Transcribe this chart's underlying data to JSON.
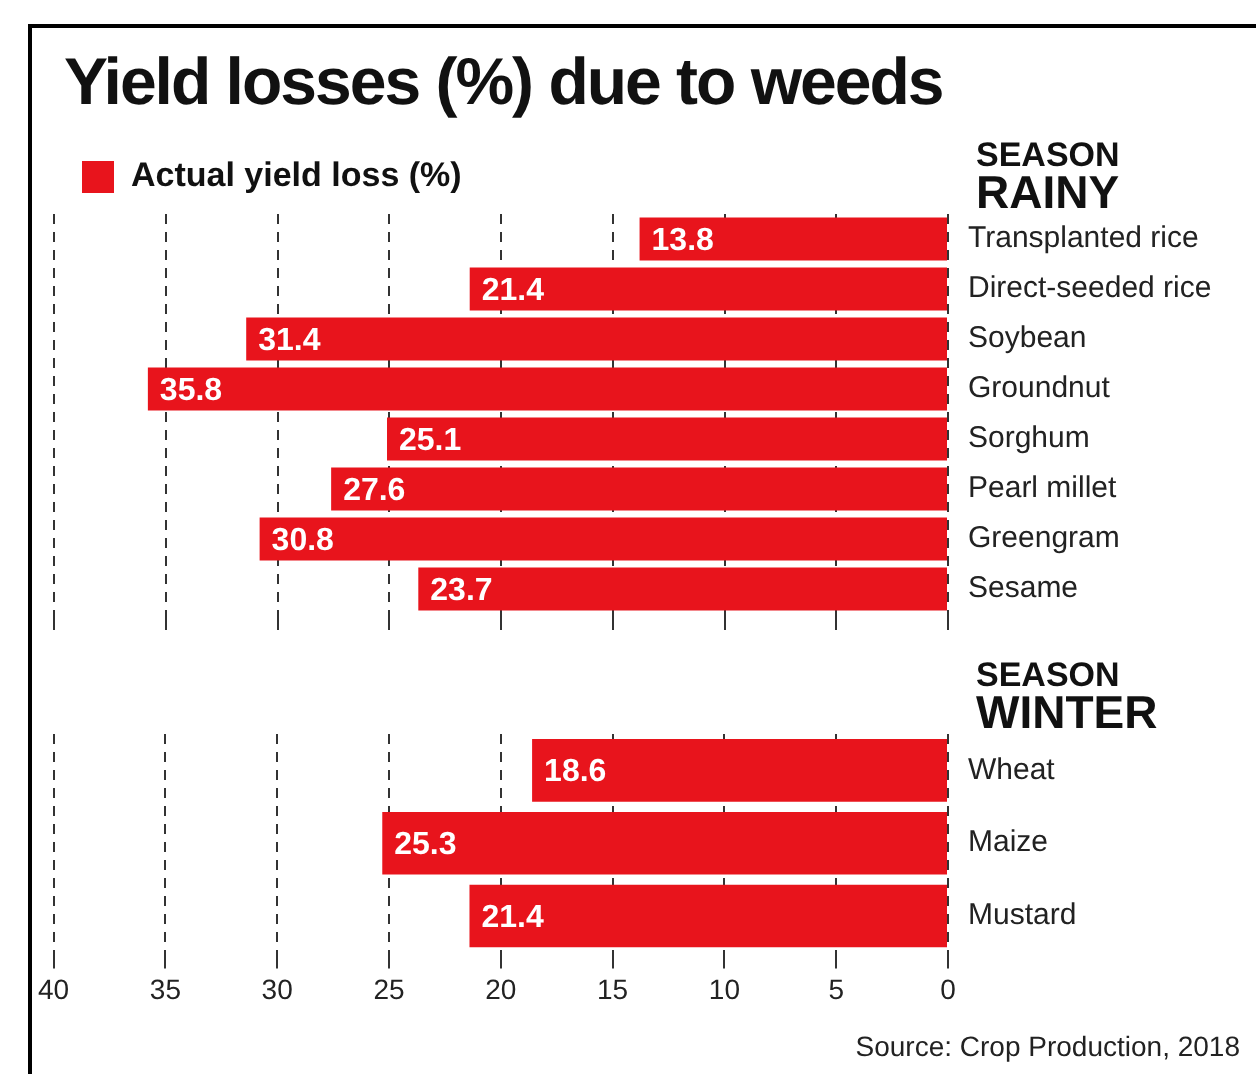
{
  "chart_data": [
    {
      "type": "bar",
      "orientation": "horizontal",
      "title": "Yield losses (%) due to weeds",
      "ylabel": "SEASON RAINY",
      "categories": [
        "Transplanted rice",
        "Direct-seeded rice",
        "Soybean",
        "Groundnut",
        "Sorghum",
        "Pearl millet",
        "Greengram",
        "Sesame"
      ],
      "series": [
        {
          "name": "Actual yield loss (%)",
          "color": "#e8141c",
          "values": [
            13.8,
            21.4,
            31.4,
            35.8,
            25.1,
            27.6,
            30.8,
            23.7
          ]
        }
      ],
      "xlim": [
        40,
        0
      ],
      "xticks": [
        40,
        35,
        30,
        25,
        20,
        15,
        10,
        5,
        0
      ],
      "grid": "x",
      "legend": "top left",
      "data_labels": true,
      "tick_labels": "y"
    },
    {
      "type": "bar",
      "orientation": "horizontal",
      "ylabel": "SEASON WINTER",
      "categories": [
        "Wheat",
        "Maize",
        "Mustard"
      ],
      "series": [
        {
          "color": "#e8141c",
          "values": [
            18.6,
            25.3,
            21.4
          ]
        }
      ],
      "xlim": [
        40,
        0
      ],
      "xticks": [
        40,
        35,
        30,
        25,
        20,
        15,
        10,
        5,
        0
      ],
      "grid": "x",
      "data_labels": true,
      "annotations": [
        "Source: Crop Production, 2018"
      ]
    }
  ]
}
